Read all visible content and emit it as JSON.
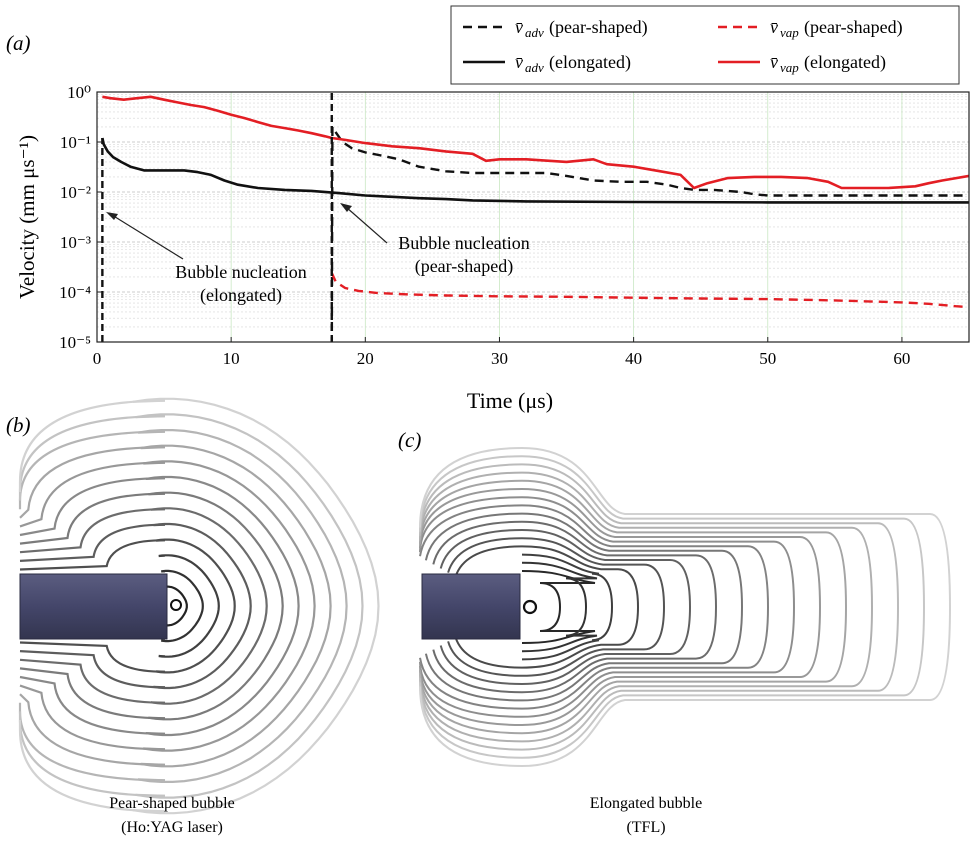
{
  "panels": {
    "a": "(a)",
    "b": "(b)",
    "c": "(c)"
  },
  "legend": [
    {
      "key": "vadv_pear",
      "symbol": "v̄",
      "sub": "adv",
      "label": "(pear-shaped)",
      "color": "#111111",
      "style": "dashed"
    },
    {
      "key": "vvap_pear",
      "symbol": "v̄",
      "sub": "vap",
      "label": "(pear-shaped)",
      "color": "#e31e24",
      "style": "dashed"
    },
    {
      "key": "vadv_elong",
      "symbol": "v̄",
      "sub": "adv",
      "label": "(elongated)",
      "color": "#111111",
      "style": "solid"
    },
    {
      "key": "vvap_elong",
      "symbol": "v̄",
      "sub": "vap",
      "label": "(elongated)",
      "color": "#e31e24",
      "style": "solid"
    }
  ],
  "annotations": {
    "elong_l1": "Bubble nucleation",
    "elong_l2": "(elongated)",
    "pear_l1": "Bubble nucleation",
    "pear_l2": "(pear-shaped)"
  },
  "captions": {
    "b_l1": "Pear-shaped bubble",
    "b_l2": "(Ho:YAG laser)",
    "c_l1": "Elongated bubble",
    "c_l2": "(TFL)"
  },
  "chart_data": {
    "type": "line",
    "xlabel": "Time (μs)",
    "ylabel": "Velocity (mm μs⁻¹)",
    "xlim": [
      0,
      65
    ],
    "ylim": [
      1e-05,
      1
    ],
    "yscale": "log",
    "xticks": [
      "0",
      "10",
      "20",
      "30",
      "40",
      "50",
      "60"
    ],
    "yticks": [
      "10⁻⁵",
      "10⁻⁴",
      "10⁻³",
      "10⁻²",
      "10⁻¹",
      "10⁰"
    ],
    "grid": true,
    "legend_position": "top-right",
    "series": [
      {
        "name": "v̄adv (pear-shaped)",
        "color": "#111111",
        "style": "dashed",
        "x": [
          17.5,
          17.55,
          17.7,
          18.3,
          19,
          20,
          21,
          22.5,
          24,
          26,
          28,
          30,
          32,
          33.5,
          35,
          37,
          39,
          41,
          42.5,
          43.5,
          44.5,
          46,
          48,
          49,
          50,
          52,
          55,
          58,
          62,
          65
        ],
        "y": [
          1e-05,
          0.2,
          0.17,
          0.1,
          0.075,
          0.062,
          0.055,
          0.045,
          0.032,
          0.026,
          0.024,
          0.024,
          0.024,
          0.024,
          0.021,
          0.017,
          0.016,
          0.016,
          0.014,
          0.012,
          0.011,
          0.011,
          0.01,
          0.009,
          0.0085,
          0.0085,
          0.0085,
          0.0085,
          0.0085,
          0.0085
        ]
      },
      {
        "name": "v̄vap (pear-shaped)",
        "color": "#e31e24",
        "style": "dashed",
        "x": [
          17.5,
          17.8,
          18.5,
          19.5,
          21,
          23,
          26,
          30,
          35,
          40,
          45,
          50,
          55,
          60,
          62,
          64,
          65
        ],
        "y": [
          0.00024,
          0.00016,
          0.00012,
          0.000105,
          9.5e-05,
          9e-05,
          8.5e-05,
          8.2e-05,
          8e-05,
          7.7e-05,
          7.4e-05,
          7.2e-05,
          6.8e-05,
          6.2e-05,
          5.8e-05,
          5.2e-05,
          5e-05
        ]
      },
      {
        "name": "v̄adv (elongated)",
        "color": "#111111",
        "style": "solid",
        "x": [
          0.4,
          0.5,
          0.8,
          1.2,
          1.8,
          2.5,
          3.5,
          5,
          6.5,
          7.5,
          8.5,
          9.5,
          10.5,
          12,
          14,
          16,
          18,
          20,
          22,
          24,
          26,
          28,
          32,
          40,
          50,
          60,
          65
        ],
        "y": [
          0.12,
          0.09,
          0.065,
          0.05,
          0.04,
          0.032,
          0.027,
          0.027,
          0.027,
          0.025,
          0.022,
          0.017,
          0.014,
          0.012,
          0.011,
          0.0105,
          0.0095,
          0.0085,
          0.008,
          0.0075,
          0.0072,
          0.0068,
          0.0065,
          0.0063,
          0.0062,
          0.0062,
          0.0062
        ]
      },
      {
        "name": "v̄vap (elongated)",
        "color": "#e31e24",
        "style": "solid",
        "x": [
          0.4,
          1,
          2,
          3,
          4,
          5,
          6,
          7,
          8,
          9,
          10,
          11,
          12,
          13,
          14,
          15,
          16,
          17,
          17.5,
          18.5,
          20,
          22,
          24,
          26,
          28,
          29,
          30,
          32,
          35,
          37,
          38,
          40,
          42,
          43.5,
          44.5,
          45.5,
          47,
          49,
          51,
          53,
          54.5,
          55.5,
          57,
          59,
          61,
          62,
          63,
          65
        ],
        "y": [
          0.8,
          0.75,
          0.7,
          0.75,
          0.8,
          0.7,
          0.62,
          0.55,
          0.5,
          0.42,
          0.35,
          0.3,
          0.25,
          0.21,
          0.19,
          0.17,
          0.15,
          0.13,
          0.12,
          0.11,
          0.095,
          0.082,
          0.075,
          0.065,
          0.058,
          0.042,
          0.045,
          0.045,
          0.04,
          0.045,
          0.036,
          0.032,
          0.026,
          0.022,
          0.012,
          0.015,
          0.019,
          0.02,
          0.02,
          0.019,
          0.016,
          0.012,
          0.012,
          0.012,
          0.013,
          0.015,
          0.017,
          0.021
        ]
      }
    ]
  }
}
